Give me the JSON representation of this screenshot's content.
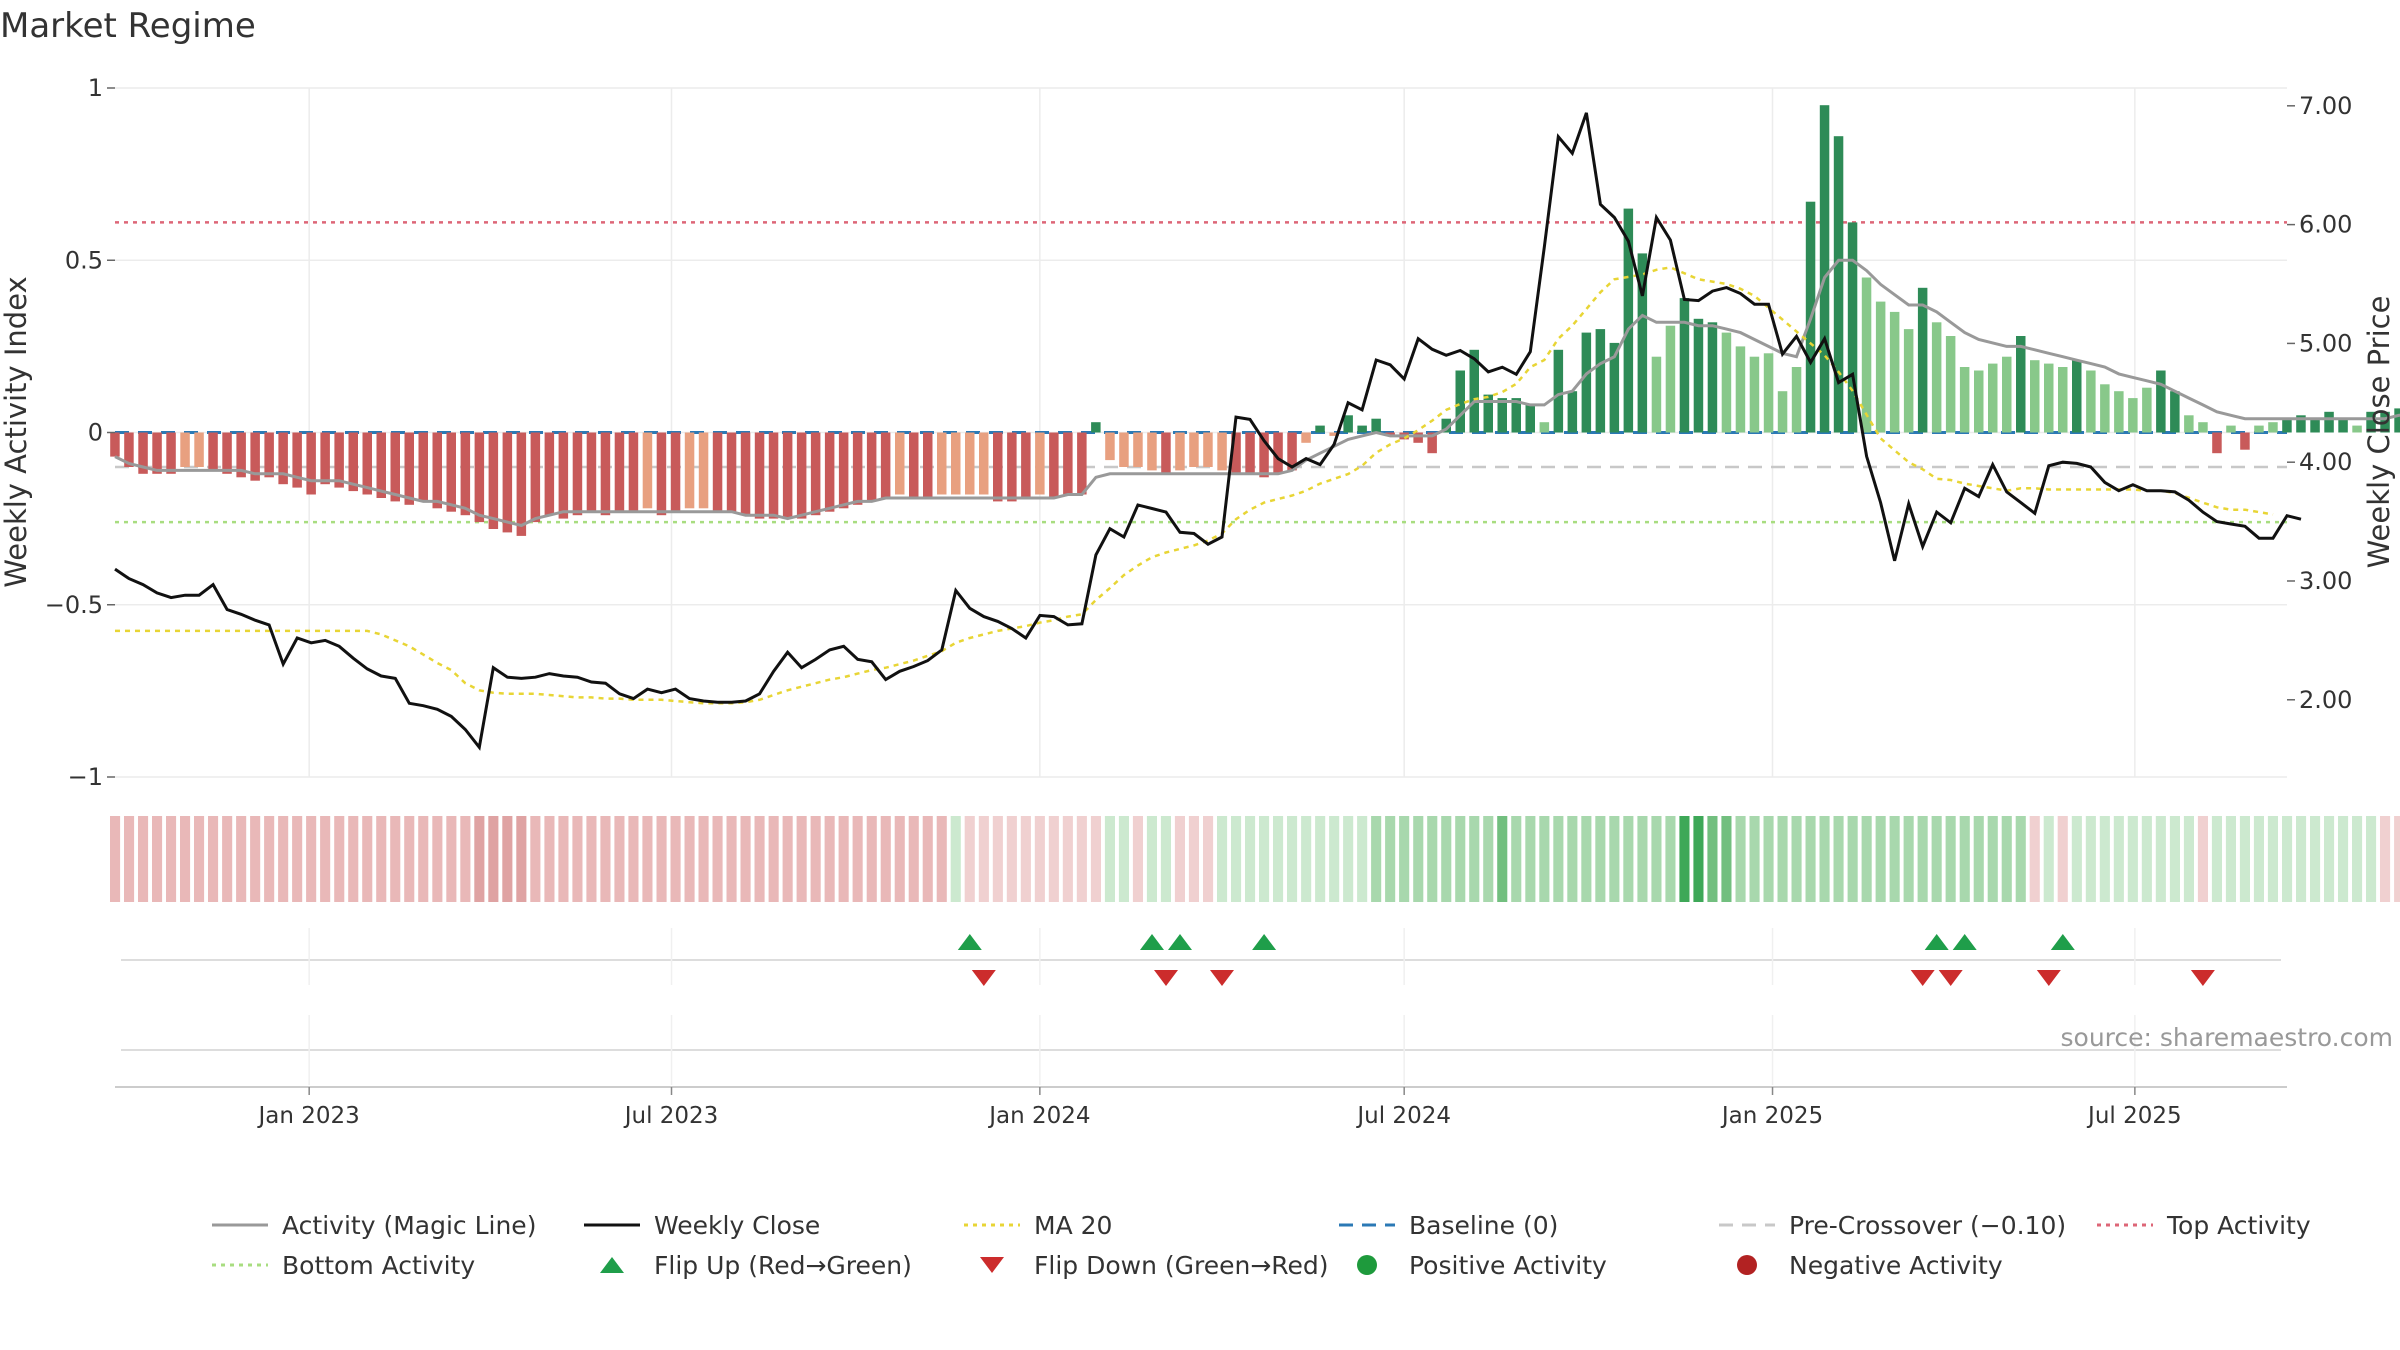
{
  "title": "Market Regime",
  "source_text": "source: sharemaestro.com",
  "colors": {
    "magic_line": "#999999",
    "weekly_close": "#111111",
    "ma20": "#e8d535",
    "baseline": "#2b79b5",
    "pre_crossover": "#c8c8c8",
    "top_activity": "#dd6677",
    "bottom_activity": "#a8dd80",
    "bar_pos_strong": "#2e8b57",
    "bar_pos_light": "#88c88a",
    "bar_neg_strong": "#c85a5a",
    "bar_neg_light": "#e8a080",
    "flip_up": "#1f9e4a",
    "flip_down": "#cc2c2c",
    "positive_dot": "#1e9a3c",
    "negative_dot": "#b22222"
  },
  "legend": {
    "rows": [
      [
        {
          "key": "magic_line",
          "label": "Activity (Magic Line)",
          "icon": "solid-line-icon"
        },
        {
          "key": "weekly_close",
          "label": "Weekly Close",
          "icon": "solid-line-icon"
        },
        {
          "key": "ma20",
          "label": "MA 20",
          "icon": "dotted-line-icon"
        },
        {
          "key": "baseline",
          "label": "Baseline (0)",
          "icon": "dashed-line-icon"
        },
        {
          "key": "pre_crossover",
          "label": "Pre-Crossover (−0.10)",
          "icon": "dashed-line-icon"
        },
        {
          "key": "top_activity",
          "label": "Top Activity",
          "icon": "dotted-line-icon"
        }
      ],
      [
        {
          "key": "bottom_activity",
          "label": "Bottom Activity",
          "icon": "dotted-line-icon"
        },
        {
          "key": "flip_up",
          "label": "Flip Up (Red→Green)",
          "icon": "triangle-up-icon"
        },
        {
          "key": "flip_down",
          "label": "Flip Down (Green→Red)",
          "icon": "triangle-down-icon"
        },
        {
          "key": "positive_dot",
          "label": "Positive Activity",
          "icon": "circle-icon"
        },
        {
          "key": "negative_dot",
          "label": "Negative Activity",
          "icon": "circle-icon"
        }
      ]
    ]
  },
  "chart_data": {
    "type": "bar",
    "title": "Market Regime",
    "ylabel": "Weekly Activity Index",
    "y2label": "Weekly Close Price",
    "ylim": [
      -1,
      1
    ],
    "y2lim": [
      1.35,
      7.15
    ],
    "yticks": [
      1,
      0.5,
      0,
      -0.5,
      -1
    ],
    "ytick_labels": [
      "1",
      "0.5",
      "0",
      "−0.5",
      "−1"
    ],
    "y2ticks": [
      7,
      6,
      5,
      4,
      3,
      2
    ],
    "y2tick_labels": [
      "7.00",
      "6.00",
      "5.00",
      "4.00",
      "3.00",
      "2.00"
    ],
    "xlim": [
      "2022-09-26",
      "2025-09-15"
    ],
    "xticks": [
      "2023-01-01",
      "2023-07-01",
      "2024-01-01",
      "2024-07-01",
      "2025-01-01",
      "2025-07-01"
    ],
    "xtick_labels": [
      "Jan 2023",
      "Jul 2023",
      "Jan 2024",
      "Jul 2024",
      "Jan 2025",
      "Jul 2025"
    ],
    "start_date": "2022-09-26",
    "grid": true,
    "legend_position": "bottom",
    "reference_lines": {
      "baseline": 0,
      "pre_crossover": -0.1,
      "top_activity": 0.61,
      "bottom_activity": -0.26
    },
    "activity": [
      -0.07,
      -0.1,
      -0.12,
      -0.12,
      -0.12,
      -0.1,
      -0.1,
      -0.11,
      -0.12,
      -0.13,
      -0.14,
      -0.13,
      -0.15,
      -0.16,
      -0.18,
      -0.15,
      -0.16,
      -0.17,
      -0.18,
      -0.19,
      -0.2,
      -0.21,
      -0.2,
      -0.22,
      -0.23,
      -0.24,
      -0.26,
      -0.28,
      -0.29,
      -0.3,
      -0.26,
      -0.24,
      -0.25,
      -0.24,
      -0.23,
      -0.24,
      -0.23,
      -0.23,
      -0.22,
      -0.24,
      -0.23,
      -0.22,
      -0.22,
      -0.23,
      -0.23,
      -0.24,
      -0.25,
      -0.25,
      -0.25,
      -0.25,
      -0.24,
      -0.23,
      -0.22,
      -0.21,
      -0.2,
      -0.19,
      -0.18,
      -0.19,
      -0.19,
      -0.18,
      -0.18,
      -0.18,
      -0.18,
      -0.2,
      -0.2,
      -0.19,
      -0.18,
      -0.19,
      -0.18,
      -0.18,
      0.03,
      -0.08,
      -0.1,
      -0.1,
      -0.11,
      -0.12,
      -0.11,
      -0.1,
      -0.1,
      -0.11,
      -0.12,
      -0.12,
      -0.13,
      -0.12,
      -0.11,
      -0.03,
      0.02,
      -0.01,
      0.05,
      0.02,
      0.04,
      -0.01,
      -0.02,
      -0.03,
      -0.06,
      0.04,
      0.18,
      0.24,
      0.11,
      0.1,
      0.1,
      0.08,
      0.03,
      0.24,
      0.12,
      0.29,
      0.3,
      0.26,
      0.65,
      0.52,
      0.22,
      0.31,
      0.39,
      0.33,
      0.32,
      0.29,
      0.25,
      0.22,
      0.23,
      0.12,
      0.19,
      0.67,
      0.95,
      0.86,
      0.61,
      0.45,
      0.38,
      0.35,
      0.3,
      0.42,
      0.32,
      0.28,
      0.19,
      0.18,
      0.2,
      0.22,
      0.28,
      0.21,
      0.2,
      0.19,
      0.21,
      0.18,
      0.14,
      0.12,
      0.1,
      0.13,
      0.18,
      0.12,
      0.05,
      0.03,
      -0.06,
      0.02,
      -0.05,
      0.02,
      0.03,
      0.04,
      0.05,
      0.04,
      0.06,
      0.04,
      0.02,
      0.06,
      0.06,
      0.07,
      0.06,
      0.05,
      0.04,
      0.03,
      0.04,
      0.09,
      0.03,
      0.02,
      0.02,
      0.01,
      0.02,
      -0.01,
      -0.02,
      -0.03,
      -0.04,
      -0.02,
      0.01,
      -0.02
    ],
    "activity_magic": [
      -0.07,
      -0.09,
      -0.1,
      -0.11,
      -0.11,
      -0.11,
      -0.11,
      -0.11,
      -0.11,
      -0.11,
      -0.12,
      -0.12,
      -0.12,
      -0.13,
      -0.14,
      -0.14,
      -0.14,
      -0.15,
      -0.16,
      -0.17,
      -0.18,
      -0.19,
      -0.2,
      -0.2,
      -0.21,
      -0.22,
      -0.24,
      -0.25,
      -0.26,
      -0.27,
      -0.25,
      -0.24,
      -0.23,
      -0.23,
      -0.23,
      -0.23,
      -0.23,
      -0.23,
      -0.23,
      -0.23,
      -0.23,
      -0.23,
      -0.23,
      -0.23,
      -0.23,
      -0.24,
      -0.24,
      -0.24,
      -0.25,
      -0.24,
      -0.23,
      -0.22,
      -0.21,
      -0.2,
      -0.2,
      -0.19,
      -0.19,
      -0.19,
      -0.19,
      -0.19,
      -0.19,
      -0.19,
      -0.19,
      -0.19,
      -0.19,
      -0.19,
      -0.19,
      -0.19,
      -0.18,
      -0.18,
      -0.13,
      -0.12,
      -0.12,
      -0.12,
      -0.12,
      -0.12,
      -0.12,
      -0.12,
      -0.12,
      -0.12,
      -0.12,
      -0.12,
      -0.12,
      -0.12,
      -0.11,
      -0.08,
      -0.06,
      -0.04,
      -0.02,
      -0.01,
      0.0,
      -0.01,
      -0.01,
      -0.01,
      -0.01,
      0.01,
      0.05,
      0.09,
      0.09,
      0.09,
      0.09,
      0.08,
      0.08,
      0.11,
      0.12,
      0.17,
      0.2,
      0.22,
      0.3,
      0.34,
      0.32,
      0.32,
      0.32,
      0.31,
      0.31,
      0.3,
      0.29,
      0.27,
      0.25,
      0.23,
      0.22,
      0.33,
      0.45,
      0.5,
      0.5,
      0.47,
      0.43,
      0.4,
      0.37,
      0.37,
      0.35,
      0.32,
      0.29,
      0.27,
      0.26,
      0.25,
      0.25,
      0.24,
      0.23,
      0.22,
      0.21,
      0.2,
      0.19,
      0.17,
      0.16,
      0.15,
      0.14,
      0.12,
      0.1,
      0.08,
      0.06,
      0.05,
      0.04,
      0.04,
      0.04,
      0.04,
      0.04,
      0.04,
      0.04,
      0.04,
      0.04,
      0.04,
      0.04,
      0.05,
      0.05,
      0.05,
      0.05,
      0.05,
      0.05,
      0.05,
      0.05,
      0.05,
      0.04,
      0.03,
      0.02,
      0.01,
      0.0,
      -0.01,
      -0.01,
      -0.01,
      -0.01,
      -0.01
    ],
    "weekly_close": [
      3.1,
      3.02,
      2.97,
      2.9,
      2.86,
      2.88,
      2.88,
      2.97,
      2.76,
      2.72,
      2.67,
      2.63,
      2.3,
      2.52,
      2.48,
      2.5,
      2.45,
      2.35,
      2.26,
      2.2,
      2.18,
      1.97,
      1.95,
      1.92,
      1.86,
      1.75,
      1.6,
      2.27,
      2.19,
      2.18,
      2.19,
      2.22,
      2.2,
      2.19,
      2.15,
      2.14,
      2.05,
      2.01,
      2.09,
      2.06,
      2.09,
      2.01,
      1.99,
      1.98,
      1.98,
      1.99,
      2.05,
      2.24,
      2.4,
      2.27,
      2.34,
      2.42,
      2.45,
      2.34,
      2.32,
      2.17,
      2.24,
      2.28,
      2.33,
      2.42,
      2.92,
      2.77,
      2.7,
      2.66,
      2.6,
      2.52,
      2.71,
      2.7,
      2.63,
      2.64,
      3.22,
      3.44,
      3.37,
      3.64,
      3.61,
      3.58,
      3.41,
      3.4,
      3.31,
      3.37,
      4.38,
      4.36,
      4.18,
      4.03,
      3.96,
      4.03,
      3.98,
      4.15,
      4.5,
      4.44,
      4.86,
      4.82,
      4.7,
      5.04,
      4.95,
      4.9,
      4.94,
      4.87,
      4.76,
      4.8,
      4.74,
      4.93,
      5.81,
      6.74,
      6.6,
      6.94,
      6.17,
      6.06,
      5.86,
      5.4,
      6.06,
      5.87,
      5.37,
      5.36,
      5.44,
      5.47,
      5.42,
      5.33,
      5.33,
      4.91,
      5.06,
      4.84,
      5.04,
      4.67,
      4.74,
      4.05,
      3.66,
      3.17,
      3.65,
      3.29,
      3.58,
      3.49,
      3.78,
      3.71,
      3.98,
      3.75,
      3.66,
      3.57,
      3.97,
      4.0,
      3.99,
      3.96,
      3.83,
      3.76,
      3.81,
      3.76,
      3.76,
      3.75,
      3.68,
      3.58,
      3.5,
      3.48,
      3.46,
      3.36,
      3.36,
      3.55,
      3.52
    ],
    "ma20": [
      2.58,
      2.58,
      2.58,
      2.58,
      2.58,
      2.58,
      2.58,
      2.58,
      2.58,
      2.58,
      2.58,
      2.58,
      2.58,
      2.58,
      2.58,
      2.58,
      2.58,
      2.58,
      2.58,
      2.55,
      2.5,
      2.45,
      2.38,
      2.31,
      2.25,
      2.14,
      2.08,
      2.06,
      2.05,
      2.05,
      2.05,
      2.04,
      2.03,
      2.02,
      2.02,
      2.01,
      2.01,
      2.0,
      2.0,
      2.0,
      1.99,
      1.98,
      1.97,
      1.97,
      1.97,
      1.98,
      2.0,
      2.04,
      2.08,
      2.11,
      2.14,
      2.17,
      2.19,
      2.22,
      2.25,
      2.27,
      2.3,
      2.33,
      2.37,
      2.41,
      2.48,
      2.52,
      2.55,
      2.58,
      2.6,
      2.62,
      2.65,
      2.67,
      2.7,
      2.72,
      2.84,
      2.94,
      3.05,
      3.13,
      3.2,
      3.24,
      3.27,
      3.3,
      3.34,
      3.4,
      3.52,
      3.6,
      3.66,
      3.69,
      3.72,
      3.76,
      3.82,
      3.86,
      3.9,
      3.97,
      4.08,
      4.15,
      4.2,
      4.27,
      4.35,
      4.44,
      4.49,
      4.53,
      4.55,
      4.59,
      4.66,
      4.8,
      4.86,
      5.04,
      5.15,
      5.29,
      5.43,
      5.54,
      5.56,
      5.58,
      5.62,
      5.64,
      5.59,
      5.54,
      5.52,
      5.5,
      5.46,
      5.4,
      5.3,
      5.2,
      5.1,
      5.0,
      4.9,
      4.76,
      4.6,
      4.4,
      4.2,
      4.1,
      4.0,
      3.94,
      3.86,
      3.85,
      3.82,
      3.8,
      3.78,
      3.76,
      3.78,
      3.78,
      3.77,
      3.77,
      3.77,
      3.77,
      3.77,
      3.77,
      3.77,
      3.76,
      3.76,
      3.74,
      3.7,
      3.66,
      3.62,
      3.6,
      3.6,
      3.58,
      3.56
    ],
    "regime": [
      -2,
      -2,
      -2,
      -2,
      -2,
      -2,
      -2,
      -2,
      -2,
      -2,
      -2,
      -2,
      -2,
      -2,
      -2,
      -2,
      -2,
      -2,
      -2,
      -2,
      -2,
      -2,
      -2,
      -2,
      -2,
      -2,
      -3,
      -3,
      -3,
      -3,
      -2,
      -2,
      -2,
      -2,
      -2,
      -2,
      -2,
      -2,
      -2,
      -2,
      -2,
      -2,
      -2,
      -2,
      -2,
      -2,
      -2,
      -2,
      -2,
      -2,
      -2,
      -2,
      -2,
      -2,
      -2,
      -2,
      -2,
      -2,
      -2,
      -2,
      1,
      -1,
      -1,
      -1,
      -1,
      -1,
      -1,
      -1,
      -1,
      -1,
      -1,
      1,
      1,
      -1,
      1,
      1,
      -1,
      -1,
      -1,
      1,
      1,
      1,
      1,
      1,
      1,
      1,
      1,
      1,
      1,
      1,
      2,
      2,
      2,
      2,
      2,
      2,
      2,
      2,
      2,
      3,
      2,
      2,
      2,
      2,
      2,
      2,
      2,
      2,
      2,
      2,
      2,
      2,
      4,
      4,
      3,
      3,
      2,
      2,
      2,
      2,
      2,
      2,
      2,
      2,
      2,
      2,
      2,
      2,
      2,
      2,
      2,
      2,
      2,
      2,
      2,
      2,
      2,
      -1,
      1,
      -1,
      1,
      1,
      1,
      1,
      1,
      1,
      1,
      1,
      1,
      -1,
      1,
      1,
      1,
      1,
      1,
      1,
      1,
      1,
      1,
      1,
      1,
      1,
      -1,
      -1,
      -1,
      -1,
      -1,
      -1,
      -1,
      -1
    ],
    "flip_up": [
      "2023-11-27",
      "2024-02-26",
      "2024-03-11",
      "2024-04-22",
      "2025-03-24",
      "2025-04-07",
      "2025-05-26"
    ],
    "flip_down": [
      "2023-12-04",
      "2024-03-04",
      "2024-04-01",
      "2025-03-17",
      "2025-03-31",
      "2025-05-19",
      "2025-08-04"
    ],
    "positive_dots": [],
    "negative_dots": []
  }
}
